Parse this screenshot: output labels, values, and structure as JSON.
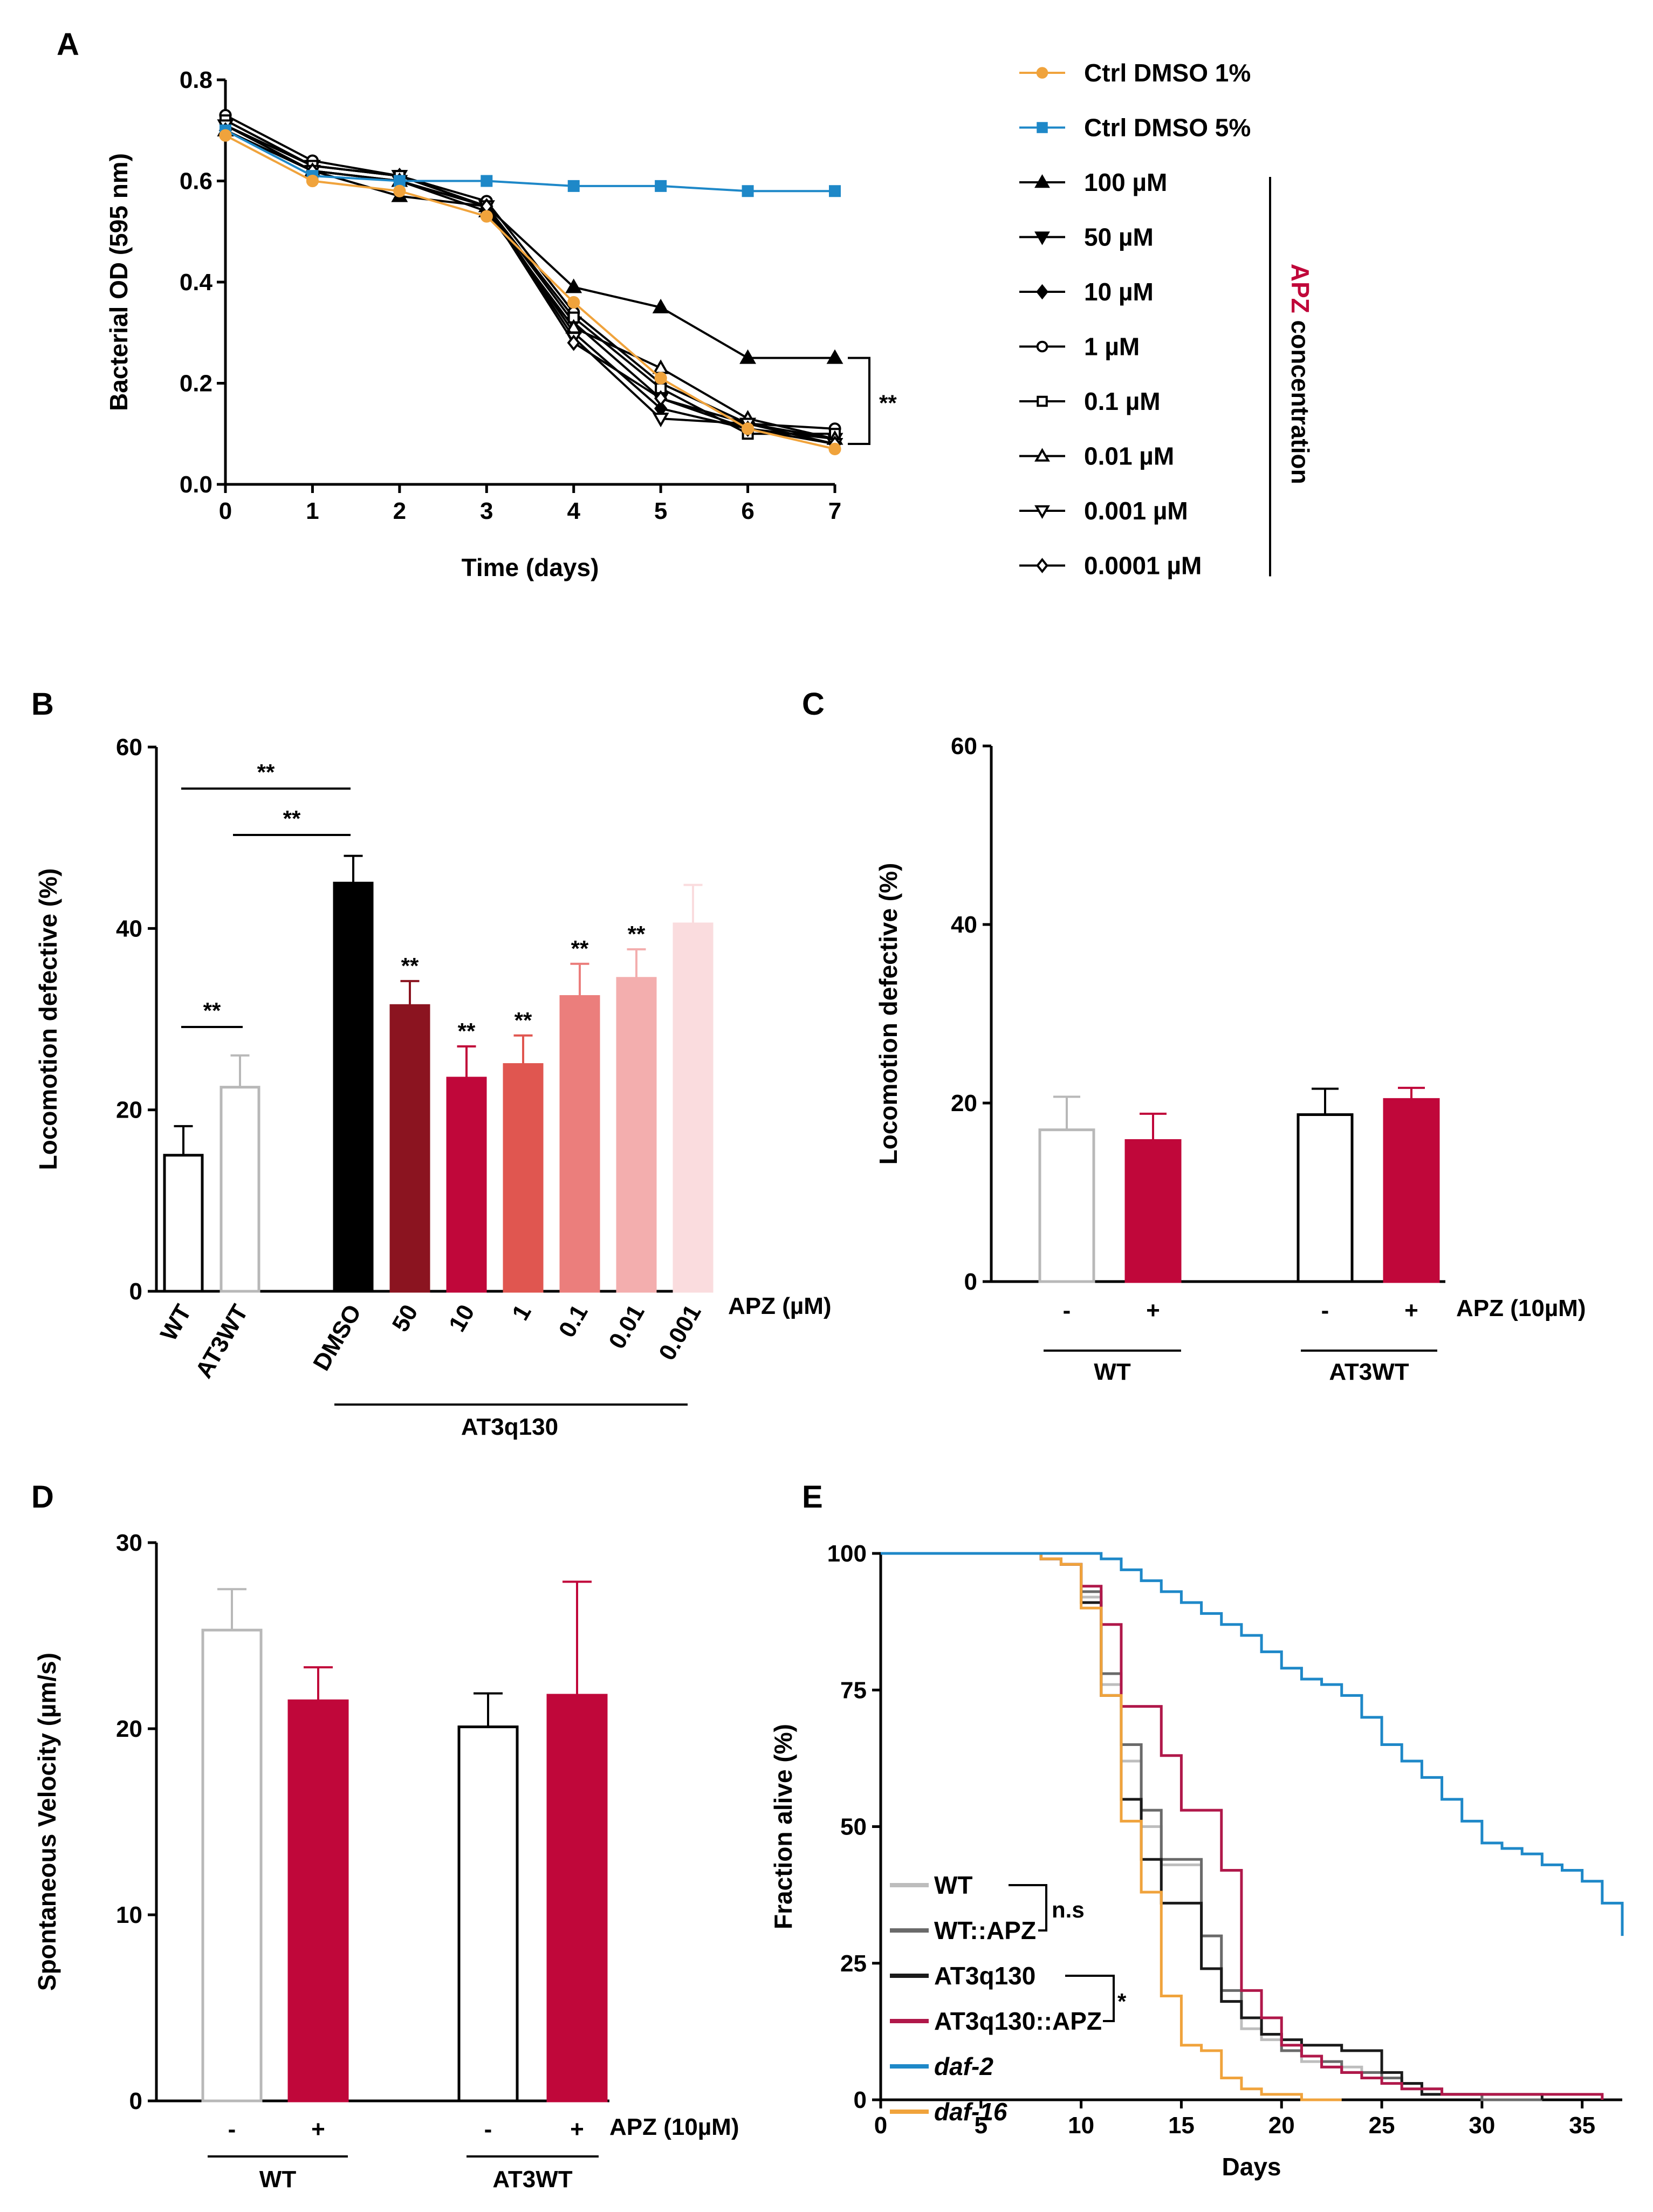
{
  "colors": {
    "orange": "#F0A33C",
    "blue": "#1E88C8",
    "black": "#000000",
    "grey": "#b8b8b8",
    "darkgrey": "#6e6e6e",
    "crimson": "#C0073A",
    "maroon": "#8B1420",
    "red2": "#E05650",
    "salmon": "#EB7E7C",
    "pink": "#F3AEAE",
    "palepink": "#FADCDE",
    "lifegrey": "#bdbdbd",
    "lifedarkgrey": "#6a6a6a",
    "lifeblack": "#1a1a1a",
    "lifecrimson": "#B0184A"
  },
  "chart_data": [
    {
      "panel": "A",
      "type": "line",
      "xlabel": "Time (days)",
      "ylabel": "Bacterial OD (595 nm)",
      "xlim": [
        0,
        7
      ],
      "ylim": [
        0,
        0.8
      ],
      "xticks": [
        "0",
        "1",
        "2",
        "3",
        "4",
        "5",
        "6",
        "7"
      ],
      "yticks": [
        "0.0",
        "0.2",
        "0.4",
        "0.6",
        "0.8"
      ],
      "x": [
        0,
        1,
        2,
        3,
        4,
        5,
        6,
        7
      ],
      "series": [
        {
          "name": "Ctrl DMSO 1%",
          "marker": "circle-filled",
          "color": "orange",
          "values": [
            0.69,
            0.6,
            0.58,
            0.53,
            0.36,
            0.21,
            0.11,
            0.07
          ]
        },
        {
          "name": "Ctrl DMSO 5%",
          "marker": "square-filled",
          "color": "blue",
          "values": [
            0.7,
            0.61,
            0.6,
            0.6,
            0.59,
            0.59,
            0.58,
            0.58
          ]
        },
        {
          "name": "100 µM",
          "marker": "triangle-up-filled",
          "color": "black",
          "values": [
            0.7,
            0.62,
            0.57,
            0.55,
            0.39,
            0.35,
            0.25,
            0.25
          ]
        },
        {
          "name": "50 µM",
          "marker": "triangle-down-filled",
          "color": "black",
          "values": [
            0.71,
            0.63,
            0.61,
            0.55,
            0.32,
            0.17,
            0.12,
            0.09
          ]
        },
        {
          "name": "10 µM",
          "marker": "diamond-filled",
          "color": "black",
          "values": [
            0.72,
            0.63,
            0.61,
            0.55,
            0.3,
            0.15,
            0.11,
            0.09
          ]
        },
        {
          "name": "1 µM",
          "marker": "circle-open",
          "color": "black",
          "values": [
            0.73,
            0.64,
            0.61,
            0.56,
            0.34,
            0.2,
            0.12,
            0.11
          ]
        },
        {
          "name": "0.1 µM",
          "marker": "square-open",
          "color": "black",
          "values": [
            0.72,
            0.63,
            0.61,
            0.55,
            0.33,
            0.19,
            0.1,
            0.1
          ]
        },
        {
          "name": "0.01 µM",
          "marker": "triangle-up-open",
          "color": "black",
          "values": [
            0.7,
            0.62,
            0.6,
            0.54,
            0.31,
            0.23,
            0.13,
            0.09
          ]
        },
        {
          "name": "0.001 µM",
          "marker": "triangle-down-open",
          "color": "black",
          "values": [
            0.71,
            0.62,
            0.6,
            0.55,
            0.29,
            0.13,
            0.12,
            0.08
          ]
        },
        {
          "name": "0.0001 µM",
          "marker": "diamond-open",
          "color": "black",
          "values": [
            0.7,
            0.62,
            0.6,
            0.55,
            0.28,
            0.17,
            0.11,
            0.08
          ]
        }
      ],
      "significance": "**",
      "group_label_colored": "APZ",
      "group_label_rest": " concentration"
    },
    {
      "panel": "B",
      "type": "bar",
      "ylabel": "Locomotion defective (%)",
      "ylim": [
        0,
        60
      ],
      "yticks": [
        "0",
        "20",
        "40",
        "60"
      ],
      "categories": [
        "WT",
        "AT3WT",
        "DMSO",
        "50",
        "10",
        "1",
        "0.1",
        "0.01",
        "0.001"
      ],
      "values": [
        15,
        22.5,
        45,
        31.5,
        23.5,
        25,
        32.5,
        34.5,
        40.5
      ],
      "errors": [
        3.2,
        3.5,
        3.0,
        2.7,
        3.5,
        3.2,
        3.6,
        3.2,
        4.3
      ],
      "bar_fill": [
        "#ffffff",
        "#ffffff",
        "black",
        "maroon",
        "crimson",
        "red2",
        "salmon",
        "pink",
        "palepink"
      ],
      "bar_edge": [
        "#000000",
        "grey",
        "black",
        "maroon",
        "crimson",
        "red2",
        "salmon",
        "pink",
        "palepink"
      ],
      "bar_marks": [
        "",
        "",
        "",
        "**",
        "**",
        "**",
        "**",
        "**",
        ""
      ],
      "brackets": [
        {
          "from": 0,
          "to": 1,
          "label": "**",
          "y": 28
        },
        {
          "from": 0,
          "to": 2,
          "label": "**",
          "y": 55
        },
        {
          "from": 1,
          "to": 2,
          "label": "**",
          "y": 50
        }
      ],
      "x_suffix": "APZ (µM)",
      "group_label": "AT3q130"
    },
    {
      "panel": "C",
      "type": "bar",
      "ylabel": "Locomotion defective (%)",
      "ylim": [
        0,
        60
      ],
      "yticks": [
        "0",
        "20",
        "40",
        "60"
      ],
      "categories": [
        "-",
        "+",
        "-",
        "+"
      ],
      "values": [
        17,
        15.8,
        18.7,
        20.4
      ],
      "errors": [
        3.7,
        3.0,
        2.9,
        1.3
      ],
      "bar_fill": [
        "#ffffff",
        "crimson",
        "#ffffff",
        "crimson"
      ],
      "bar_edge": [
        "grey",
        "crimson",
        "#000000",
        "crimson"
      ],
      "x_suffix": "APZ (10µM)",
      "groups": [
        "WT",
        "AT3WT"
      ]
    },
    {
      "panel": "D",
      "type": "bar",
      "ylabel": "Spontaneous Velocity (µm/s)",
      "ylim": [
        0,
        30
      ],
      "yticks": [
        "0",
        "10",
        "20",
        "30"
      ],
      "categories": [
        "-",
        "+",
        "-",
        "+"
      ],
      "values": [
        25.3,
        21.5,
        20.1,
        21.8
      ],
      "errors": [
        2.2,
        1.8,
        1.8,
        6.1
      ],
      "bar_fill": [
        "#ffffff",
        "crimson",
        "#ffffff",
        "crimson"
      ],
      "bar_edge": [
        "grey",
        "crimson",
        "#000000",
        "crimson"
      ],
      "x_suffix": "APZ (10µM)",
      "groups": [
        "WT",
        "AT3WT"
      ]
    },
    {
      "panel": "E",
      "type": "line",
      "xlabel": "Days",
      "ylabel": "Fraction alive (%)",
      "xlim": [
        0,
        37
      ],
      "ylim": [
        0,
        100
      ],
      "xticks": [
        "0",
        "5",
        "10",
        "15",
        "20",
        "25",
        "30",
        "35"
      ],
      "yticks": [
        "0",
        "25",
        "50",
        "75",
        "100"
      ],
      "series": [
        {
          "name": "WT",
          "color": "lifegrey",
          "x": [
            0,
            6,
            8,
            9,
            10,
            11,
            12,
            13,
            14,
            15,
            16,
            17,
            18,
            19,
            20,
            21,
            22,
            23,
            24,
            25,
            26,
            27,
            28,
            30,
            33
          ],
          "values": [
            100,
            100,
            99,
            98,
            92,
            76,
            62,
            50,
            43,
            43,
            30,
            18,
            13,
            11,
            9,
            7,
            6,
            6,
            5,
            4,
            2,
            1,
            1,
            0,
            0
          ]
        },
        {
          "name": "WT::APZ",
          "color": "lifedarkgrey",
          "x": [
            0,
            6,
            8,
            9,
            10,
            11,
            12,
            13,
            14,
            15,
            16,
            17,
            18,
            19,
            20,
            21,
            22,
            23,
            24,
            25,
            26,
            27,
            28,
            30,
            33
          ],
          "values": [
            100,
            100,
            99,
            98,
            93,
            78,
            65,
            53,
            44,
            44,
            30,
            20,
            15,
            12,
            9,
            8,
            7,
            5,
            5,
            4,
            3,
            2,
            1,
            0,
            0
          ]
        },
        {
          "name": "AT3q130",
          "color": "lifeblack",
          "x": [
            0,
            6,
            8,
            9,
            10,
            11,
            12,
            13,
            14,
            15,
            16,
            17,
            18,
            19,
            20,
            21,
            22,
            23,
            24,
            25,
            26,
            27,
            28,
            30,
            33
          ],
          "values": [
            100,
            100,
            99,
            98,
            91,
            74,
            55,
            44,
            36,
            36,
            24,
            18,
            15,
            12,
            11,
            10,
            10,
            9,
            9,
            5,
            3,
            1,
            1,
            1,
            0
          ]
        },
        {
          "name": "AT3q130::APZ",
          "color": "lifecrimson",
          "x": [
            0,
            6,
            8,
            9,
            10,
            11,
            12,
            13,
            14,
            15,
            16,
            17,
            18,
            19,
            20,
            21,
            22,
            23,
            24,
            25,
            26,
            27,
            28,
            30,
            33,
            36
          ],
          "values": [
            100,
            100,
            99,
            98,
            94,
            87,
            72,
            72,
            63,
            53,
            53,
            42,
            20,
            15,
            10,
            8,
            6,
            5,
            4,
            3,
            2,
            2,
            1,
            1,
            1,
            0
          ]
        },
        {
          "name": "daf-2",
          "color": "blue",
          "x": [
            0,
            10,
            11,
            12,
            13,
            14,
            15,
            16,
            17,
            18,
            19,
            20,
            21,
            22,
            23,
            24,
            25,
            26,
            27,
            28,
            29,
            30,
            31,
            32,
            33,
            34,
            35,
            36,
            37
          ],
          "values": [
            100,
            100,
            99,
            97,
            95,
            93,
            91,
            89,
            87,
            85,
            82,
            79,
            77,
            76,
            74,
            70,
            65,
            62,
            59,
            55,
            51,
            47,
            46,
            45,
            43,
            42,
            40,
            36,
            30
          ]
        },
        {
          "name": "daf-16",
          "color": "orange",
          "x": [
            0,
            6,
            8,
            9,
            10,
            11,
            12,
            13,
            14,
            15,
            16,
            17,
            18,
            19,
            20,
            21,
            22,
            23
          ],
          "values": [
            100,
            100,
            99,
            98,
            90,
            74,
            51,
            38,
            19,
            10,
            9,
            4,
            2,
            1,
            1,
            0,
            0,
            0
          ]
        }
      ],
      "comparisons": [
        "n.s",
        "*"
      ]
    }
  ]
}
